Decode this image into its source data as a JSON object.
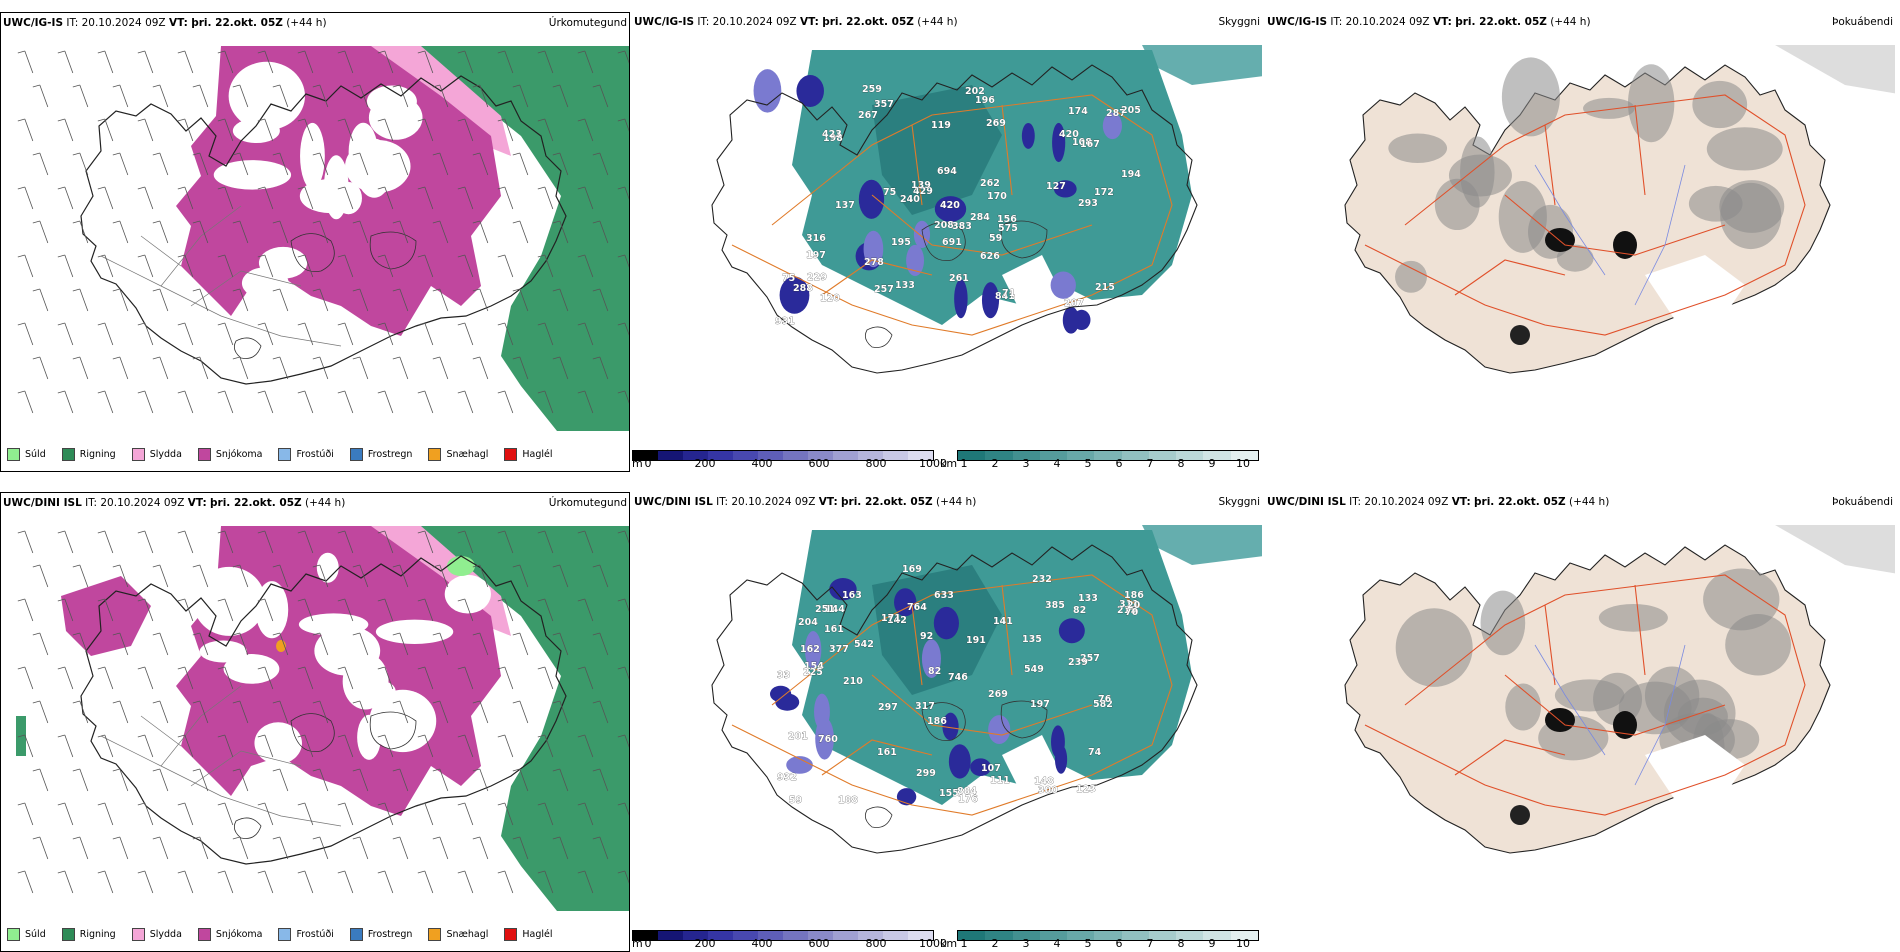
{
  "rows": [
    {
      "model": "UWC/IG-IS",
      "it_label": "IT:",
      "it_value": "20.10.2024 09Z",
      "vt_label": "VT:",
      "vt_value": "þri. 22.okt. 05Z",
      "lead": "(+44 h)",
      "left_panel_title": "Úrkomutegund",
      "middle_panel_title": "Skyggni",
      "right_panel_title": "Þokuábendi",
      "labels": [
        "267",
        "172",
        "429",
        "207",
        "197",
        "198",
        "170",
        "257",
        "195",
        "287",
        "420",
        "357",
        "423",
        "205",
        "133",
        "196",
        "120",
        "108",
        "202",
        "841",
        "316",
        "139",
        "127",
        "694",
        "208",
        "215",
        "278",
        "288",
        "240",
        "174",
        "284",
        "691",
        "261",
        "259",
        "626",
        "269",
        "383",
        "931",
        "420",
        "575",
        "229",
        "119",
        "194",
        "137",
        "293",
        "167",
        "262",
        "75",
        "156",
        "71",
        "75",
        "59"
      ]
    },
    {
      "model": "UWC/DINI ISL",
      "it_label": "IT:",
      "it_value": "20.10.2024 09Z",
      "vt_label": "VT:",
      "vt_value": "þri. 22.okt. 05Z",
      "lead": "(+44 h)",
      "left_panel_title": "Úrkomutegund",
      "middle_panel_title": "Skyggni",
      "right_panel_title": "Þokuábendi",
      "labels": [
        "176",
        "155",
        "932",
        "884",
        "197",
        "542",
        "141",
        "188",
        "186",
        "144",
        "210",
        "215",
        "633",
        "154",
        "161",
        "257",
        "163",
        "142",
        "135",
        "123",
        "239",
        "171",
        "764",
        "186",
        "33",
        "251",
        "760",
        "377",
        "92",
        "269",
        "204",
        "107",
        "148",
        "225",
        "311",
        "133",
        "191",
        "582",
        "297",
        "385",
        "549",
        "317",
        "162",
        "232",
        "746",
        "82",
        "161",
        "76",
        "169",
        "300",
        "70",
        "20",
        "299",
        "201",
        "59",
        "111",
        "82",
        "74"
      ]
    }
  ],
  "precip_legend": [
    {
      "label": "Súld",
      "color": "#90ee90"
    },
    {
      "label": "Rigning",
      "color": "#2e8b57"
    },
    {
      "label": "Slydda",
      "color": "#f4a6d7"
    },
    {
      "label": "Snjókoma",
      "color": "#c0479e"
    },
    {
      "label": "Frostúði",
      "color": "#88b8e8"
    },
    {
      "label": "Frostregn",
      "color": "#3a7bc0"
    },
    {
      "label": "Snæhagl",
      "color": "#f0a020"
    },
    {
      "label": "Haglél",
      "color": "#e01010"
    }
  ],
  "terrain_bar": {
    "unit": "m",
    "ticks": [
      "0",
      "200",
      "400",
      "600",
      "800",
      "1000"
    ],
    "colors": [
      "#000000",
      "#151575",
      "#252590",
      "#3535a5",
      "#4848b0",
      "#5e5eb8",
      "#7474c0",
      "#8a8ac8",
      "#a0a0d2",
      "#b5b5dc",
      "#c8c8e6",
      "#dcdcf0"
    ]
  },
  "visibility_bar": {
    "unit": "km",
    "ticks": [
      "1",
      "2",
      "3",
      "4",
      "5",
      "6",
      "7",
      "8",
      "9",
      "10"
    ],
    "colors": [
      "#1f7878",
      "#2f8484",
      "#429090",
      "#559c9c",
      "#68a8a8",
      "#7cb4b4",
      "#91c0c0",
      "#a6cccc",
      "#bbd8d8",
      "#d0e4e4",
      "#e4f0f0"
    ]
  },
  "fog_legend": {
    "values": [
      "0",
      "60"
    ],
    "colors": [
      "#000000",
      "#ffffff"
    ]
  }
}
